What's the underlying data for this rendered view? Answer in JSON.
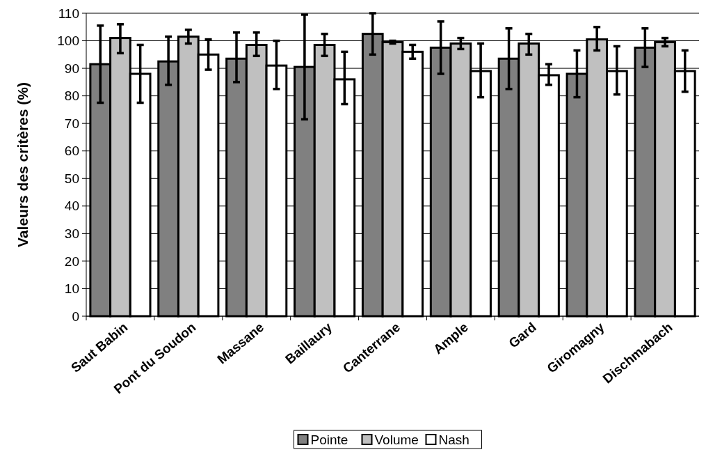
{
  "chart_data": {
    "type": "bar",
    "ylabel": "Valeurs des critères (%)",
    "categories": [
      "Saut Babin",
      "Pont du Soudon",
      "Massane",
      "Baillaury",
      "Canterrane",
      "Ample",
      "Gard",
      "Giromagny",
      "Dischmabach"
    ],
    "series": [
      {
        "name": "Pointe",
        "color": "#808080",
        "values": [
          91.5,
          92.5,
          93.5,
          90.5,
          102.5,
          97.5,
          93.5,
          88,
          97.5
        ],
        "errors": [
          [
            77.5,
            105.5
          ],
          [
            84,
            101.5
          ],
          [
            85,
            103
          ],
          [
            71.5,
            109.5
          ],
          [
            95,
            110
          ],
          [
            88,
            107
          ],
          [
            82.5,
            104.5
          ],
          [
            79.5,
            96.5
          ],
          [
            90.5,
            104.5
          ]
        ]
      },
      {
        "name": "Volume",
        "color": "#c0c0c0",
        "values": [
          101,
          101.5,
          98.5,
          98.5,
          99.5,
          99,
          99,
          100.5,
          99.5
        ],
        "errors": [
          [
            95.5,
            106
          ],
          [
            99,
            104
          ],
          [
            94.5,
            103
          ],
          [
            94.5,
            102.5
          ],
          [
            99,
            100
          ],
          [
            97,
            101
          ],
          [
            95,
            102.5
          ],
          [
            96.5,
            105
          ],
          [
            98,
            101
          ]
        ]
      },
      {
        "name": "Nash",
        "color": "#ffffff",
        "values": [
          88,
          95,
          91,
          86,
          96,
          89,
          87.5,
          89,
          89
        ],
        "errors": [
          [
            77.5,
            98.5
          ],
          [
            89.5,
            100.5
          ],
          [
            82.5,
            100
          ],
          [
            77,
            96
          ],
          [
            93.5,
            98.5
          ],
          [
            79.5,
            99
          ],
          [
            84,
            91.5
          ],
          [
            80.5,
            98
          ],
          [
            81.5,
            96.5
          ]
        ]
      }
    ],
    "ylim": [
      0,
      110
    ],
    "yticks": [
      0,
      10,
      20,
      30,
      40,
      50,
      60,
      70,
      80,
      90,
      100,
      110
    ],
    "grid": "y",
    "legend": "bottom"
  }
}
